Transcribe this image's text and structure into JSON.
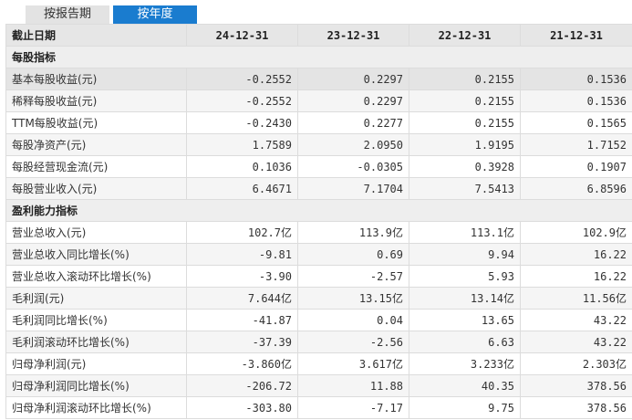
{
  "tabs": [
    {
      "label": "按报告期",
      "active": false
    },
    {
      "label": "按年度",
      "active": true
    }
  ],
  "colors": {
    "active_tab": "#1a7ccf",
    "header_bg": "#e6e6e6",
    "border": "#dcdcdc"
  },
  "header": {
    "label": "截止日期",
    "dates": [
      "24-12-31",
      "23-12-31",
      "22-12-31",
      "21-12-31"
    ]
  },
  "sections": [
    {
      "title": "每股指标",
      "rows": [
        {
          "label": "基本每股收益(元)",
          "values": [
            "-0.2552",
            "0.2297",
            "0.2155",
            "0.1536"
          ]
        },
        {
          "label": "稀释每股收益(元)",
          "values": [
            "-0.2552",
            "0.2297",
            "0.2155",
            "0.1536"
          ]
        },
        {
          "label": "TTM每股收益(元)",
          "values": [
            "-0.2430",
            "0.2277",
            "0.2155",
            "0.1565"
          ]
        },
        {
          "label": "每股净资产(元)",
          "values": [
            "1.7589",
            "2.0950",
            "1.9195",
            "1.7152"
          ]
        },
        {
          "label": "每股经营现金流(元)",
          "values": [
            "0.1036",
            "-0.0305",
            "0.3928",
            "0.1907"
          ]
        },
        {
          "label": "每股营业收入(元)",
          "values": [
            "6.4671",
            "7.1704",
            "7.5413",
            "6.8596"
          ]
        }
      ]
    },
    {
      "title": "盈利能力指标",
      "rows": [
        {
          "label": "营业总收入(元)",
          "values": [
            "102.7亿",
            "113.9亿",
            "113.1亿",
            "102.9亿"
          ]
        },
        {
          "label": "营业总收入同比增长(%)",
          "values": [
            "-9.81",
            "0.69",
            "9.94",
            "16.22"
          ]
        },
        {
          "label": "营业总收入滚动环比增长(%)",
          "values": [
            "-3.90",
            "-2.57",
            "5.93",
            "16.22"
          ]
        },
        {
          "label": "毛利润(元)",
          "values": [
            "7.644亿",
            "13.15亿",
            "13.14亿",
            "11.56亿"
          ]
        },
        {
          "label": "毛利润同比增长(%)",
          "values": [
            "-41.87",
            "0.04",
            "13.65",
            "43.22"
          ]
        },
        {
          "label": "毛利润滚动环比增长(%)",
          "values": [
            "-37.39",
            "-2.56",
            "6.63",
            "43.22"
          ]
        },
        {
          "label": "归母净利润(元)",
          "values": [
            "-3.860亿",
            "3.617亿",
            "3.233亿",
            "2.303亿"
          ]
        },
        {
          "label": "归母净利润同比增长(%)",
          "values": [
            "-206.72",
            "11.88",
            "40.35",
            "378.56"
          ]
        },
        {
          "label": "归母净利润滚动环比增长(%)",
          "values": [
            "-303.80",
            "-7.17",
            "9.75",
            "378.56"
          ]
        }
      ]
    }
  ]
}
